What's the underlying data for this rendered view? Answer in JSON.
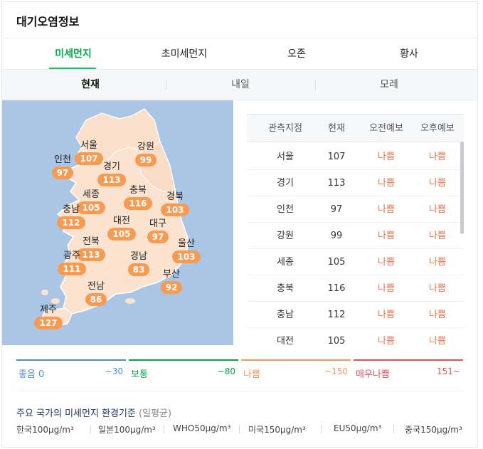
{
  "title": "대기오염정보",
  "tabs": [
    {
      "label": "미세먼지",
      "active": true
    },
    {
      "label": "초미세먼지",
      "active": false
    },
    {
      "label": "오존",
      "active": false
    },
    {
      "label": "황사",
      "active": false
    }
  ],
  "subtabs": [
    {
      "label": "현재",
      "active": true
    },
    {
      "label": "내일",
      "active": false
    },
    {
      "label": "모레",
      "active": false
    }
  ],
  "map": {
    "regions": [
      {
        "name": "서울",
        "value": "107"
      },
      {
        "name": "인천",
        "value": "97"
      },
      {
        "name": "경기",
        "value": "113"
      },
      {
        "name": "강원",
        "value": "99"
      },
      {
        "name": "세종",
        "value": "105"
      },
      {
        "name": "충북",
        "value": "116"
      },
      {
        "name": "충남",
        "value": "112"
      },
      {
        "name": "경북",
        "value": "103"
      },
      {
        "name": "대전",
        "value": "105"
      },
      {
        "name": "대구",
        "value": "97"
      },
      {
        "name": "전북",
        "value": "113"
      },
      {
        "name": "울산",
        "value": "103"
      },
      {
        "name": "광주",
        "value": "111"
      },
      {
        "name": "경남",
        "value": "83"
      },
      {
        "name": "부산",
        "value": "92"
      },
      {
        "name": "전남",
        "value": "86"
      },
      {
        "name": "제주",
        "value": "127"
      }
    ],
    "colors": {
      "sea": "#aac6e4",
      "land": "#fbe3d0",
      "badge": "#f79a52"
    }
  },
  "table": {
    "headers": [
      "관측지점",
      "현재",
      "오전예보",
      "오후예보"
    ],
    "rows": [
      [
        "서울",
        "107",
        "나쁨",
        "나쁨"
      ],
      [
        "경기",
        "113",
        "나쁨",
        "나쁨"
      ],
      [
        "인천",
        "97",
        "나쁨",
        "나쁨"
      ],
      [
        "강원",
        "99",
        "나쁨",
        "나쁨"
      ],
      [
        "세종",
        "105",
        "나쁨",
        "나쁨"
      ],
      [
        "충북",
        "116",
        "나쁨",
        "나쁨"
      ],
      [
        "충남",
        "112",
        "나쁨",
        "나쁨"
      ],
      [
        "대전",
        "105",
        "나쁨",
        "나쁨"
      ]
    ]
  },
  "legend": [
    {
      "label": "좋음 0",
      "range": "~30",
      "color": "#4a90d9"
    },
    {
      "label": "보통",
      "range": "~80",
      "color": "#03a94d"
    },
    {
      "label": "나쁨",
      "range": "~150",
      "color": "#f29a5c"
    },
    {
      "label": "매우나쁨",
      "range": "151~",
      "color": "#e8525a"
    }
  ],
  "standards": {
    "title": "주요 국가의 미세먼지 환경기준",
    "subtitle": "(일평균)",
    "items": [
      "한국100μg/m³",
      "일본100μg/m³",
      "WHO50μg/m³",
      "미국150μg/m³",
      "EU50μg/m³",
      "중국150μg/m³"
    ]
  }
}
